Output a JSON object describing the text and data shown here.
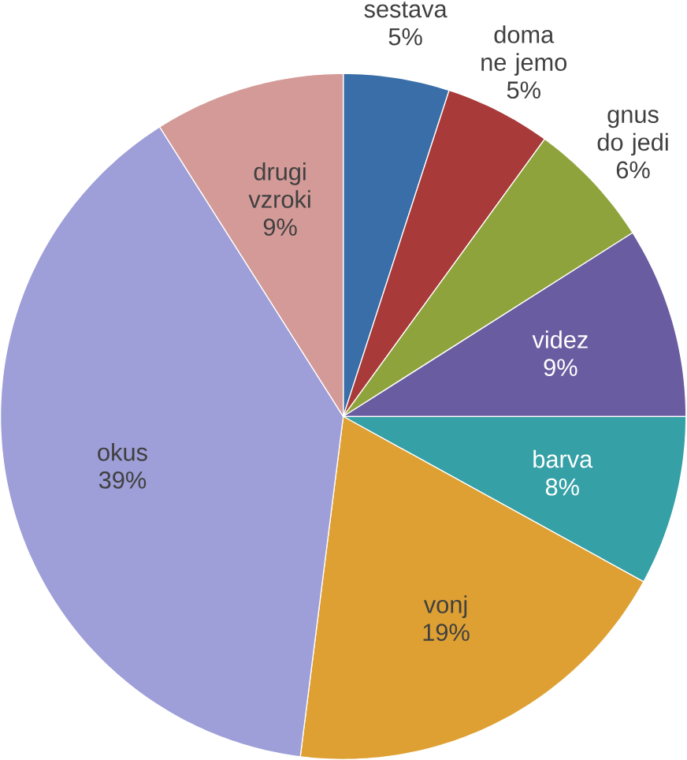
{
  "chart_data": {
    "type": "pie",
    "categories": [
      "sestava",
      "doma ne jemo",
      "gnus do jedi",
      "videz",
      "barva",
      "vonj",
      "okus",
      "drugi vzroki"
    ],
    "values": [
      5,
      5,
      6,
      9,
      8,
      19,
      39,
      9
    ],
    "value_labels": [
      "5%",
      "5%",
      "6%",
      "9%",
      "8%",
      "19%",
      "39%",
      "9%"
    ],
    "colors": [
      "#3a6ea8",
      "#a83a3a",
      "#8fa33c",
      "#6a5ca0",
      "#35a0a6",
      "#dea032",
      "#9e9ed8",
      "#d49a98"
    ]
  }
}
